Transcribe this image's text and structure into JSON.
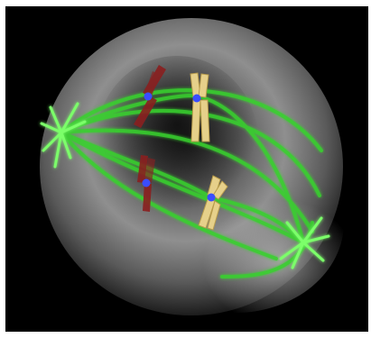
{
  "image": {
    "subject": "cell-division-spindle",
    "colors": {
      "background": "#000000",
      "cell_light": "#bdbdbd",
      "cell_mid": "#6e6e6e",
      "cell_dark": "#1a1a1a",
      "spindle_green": "#39d12e",
      "spindle_bright": "#7cff6a",
      "chromosome_red": "#8a1f1f",
      "chromosome_yellow": "#e6d08a",
      "centromere_blue": "#3a4dff"
    }
  }
}
